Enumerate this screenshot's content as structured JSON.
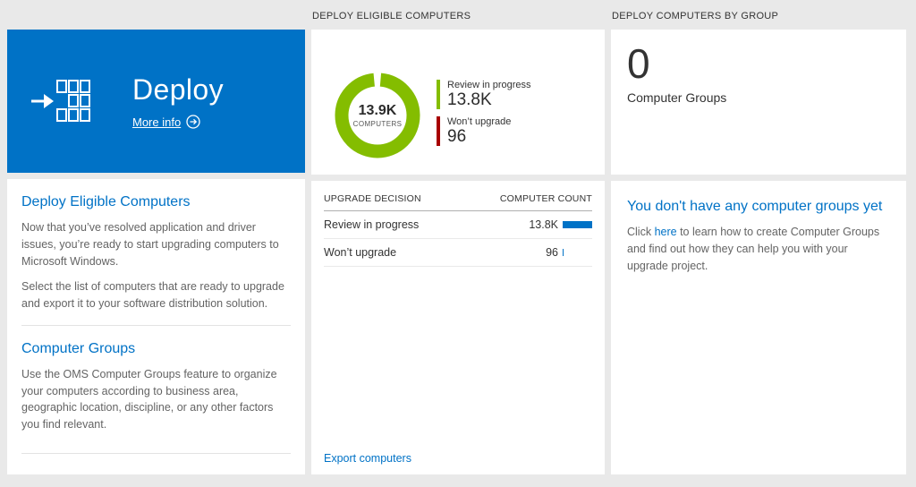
{
  "colors": {
    "tile_blue": "#0072c6",
    "accent_blue": "#0072c6",
    "bar_blue": "#0072c6",
    "donut_green": "#84bd00",
    "donut_red": "#a80000",
    "page_bg": "#e9e9e9"
  },
  "left": {
    "tile_title": "Deploy",
    "more_info_label": "More info",
    "sections": [
      {
        "heading": "Deploy Eligible Computers",
        "paragraphs": [
          "Now that you’ve resolved application and driver issues, you’re ready to start upgrading computers to Microsoft Windows.",
          "Select the list of computers that are ready to upgrade and export it to your software distribution solution."
        ]
      },
      {
        "heading": "Computer Groups",
        "paragraphs": [
          "Use the OMS Computer Groups feature to organize your computers according to business area, geographic location, discipline, or any other factors you find relevant."
        ]
      }
    ]
  },
  "middle": {
    "header": "DEPLOY ELIGIBLE COMPUTERS",
    "donut": {
      "center_value": "13.9K",
      "center_label": "COMPUTERS",
      "segments": [
        {
          "label": "Review in progress",
          "value": 13800,
          "display": "13.8K",
          "color": "#84bd00"
        },
        {
          "label": "Won’t upgrade",
          "value": 96,
          "display": "96",
          "color": "#a80000"
        }
      ]
    },
    "table": {
      "col1": "UPGRADE DECISION",
      "col2": "COMPUTER COUNT",
      "rows": [
        {
          "label": "Review in progress",
          "display": "13.8K",
          "value": 13800,
          "bar_pct": 100
        },
        {
          "label": "Won’t upgrade",
          "display": "96",
          "value": 96,
          "bar_pct": 4
        }
      ]
    },
    "export_label": "Export computers"
  },
  "right": {
    "header": "DEPLOY COMPUTERS BY GROUP",
    "count": "0",
    "count_label": "Computer Groups",
    "empty": {
      "heading": "You don't have any computer groups yet",
      "text_before": "Click ",
      "link": "here",
      "text_after": " to learn how to create Computer Groups and find out how they can help you with your upgrade project."
    }
  },
  "chart_data": {
    "type": "pie",
    "title": "DEPLOY ELIGIBLE COMPUTERS",
    "categories": [
      "Review in progress",
      "Won't upgrade"
    ],
    "values": [
      13800,
      96
    ],
    "center_label": "13.9K COMPUTERS",
    "colors": [
      "#84bd00",
      "#a80000"
    ],
    "legend_position": "right"
  }
}
